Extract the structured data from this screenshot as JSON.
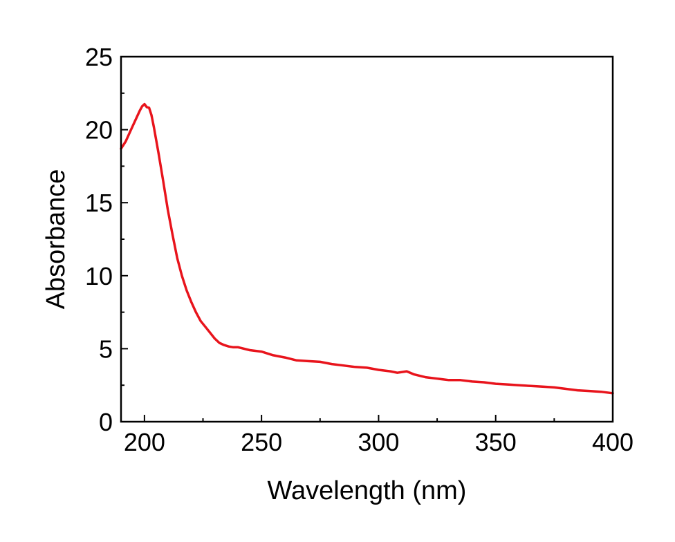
{
  "chart_data": {
    "type": "line",
    "title": "",
    "xlabel": "Wavelength (nm)",
    "ylabel": "Absorbance",
    "xlim": [
      190,
      400
    ],
    "ylim": [
      0,
      25
    ],
    "xticks": [
      200,
      250,
      300,
      350,
      400
    ],
    "xtick_labels": [
      "200",
      "250",
      "300",
      "350",
      "400"
    ],
    "yticks": [
      0,
      5,
      10,
      15,
      20,
      25
    ],
    "ytick_labels": [
      "0",
      "5",
      "10",
      "15",
      "20",
      "25"
    ],
    "grid": false,
    "series": [
      {
        "color": "#e8141c",
        "x": [
          190,
          192,
          194,
          196,
          198,
          199,
          200,
          201,
          202,
          203,
          204,
          206,
          208,
          210,
          212,
          214,
          216,
          218,
          220,
          222,
          224,
          226,
          228,
          230,
          232,
          234,
          236,
          238,
          240,
          245,
          250,
          255,
          260,
          265,
          270,
          275,
          280,
          285,
          290,
          295,
          300,
          305,
          308,
          312,
          315,
          320,
          325,
          330,
          335,
          340,
          345,
          350,
          355,
          360,
          365,
          370,
          375,
          380,
          385,
          390,
          395,
          400
        ],
        "y": [
          18.7,
          19.2,
          19.9,
          20.6,
          21.3,
          21.6,
          21.75,
          21.55,
          21.5,
          21.0,
          20.2,
          18.4,
          16.5,
          14.5,
          12.8,
          11.2,
          10.0,
          9.0,
          8.2,
          7.5,
          6.9,
          6.5,
          6.1,
          5.7,
          5.4,
          5.25,
          5.15,
          5.1,
          5.1,
          4.9,
          4.8,
          4.55,
          4.4,
          4.2,
          4.15,
          4.1,
          3.95,
          3.85,
          3.75,
          3.7,
          3.55,
          3.45,
          3.35,
          3.45,
          3.25,
          3.05,
          2.95,
          2.85,
          2.85,
          2.75,
          2.7,
          2.6,
          2.55,
          2.5,
          2.45,
          2.4,
          2.35,
          2.25,
          2.15,
          2.1,
          2.05,
          1.95
        ]
      }
    ]
  }
}
